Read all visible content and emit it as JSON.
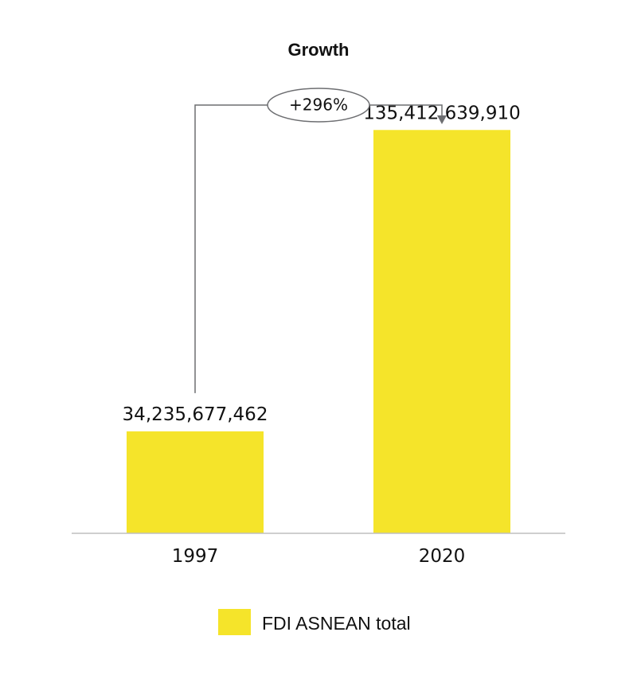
{
  "chart_data": {
    "type": "bar",
    "title": "Growth",
    "categories": [
      "1997",
      "2020"
    ],
    "series": [
      {
        "name": "FDI ASNEAN total",
        "values": [
          34235677462,
          135412639910
        ]
      }
    ],
    "value_labels": [
      "34,235,677,462",
      "135,412,639,910"
    ],
    "annotation": {
      "from": "1997",
      "to": "2020",
      "label": "+296%"
    },
    "xlabel": "",
    "ylabel": "",
    "ylim": [
      0,
      155000000000
    ],
    "grid": false,
    "legend": "bottom-center"
  },
  "colors": {
    "bar": "#f5e42a",
    "axis": "#bfbfbf",
    "connector": "#6d6e71",
    "arrow": "#6d6e71"
  }
}
